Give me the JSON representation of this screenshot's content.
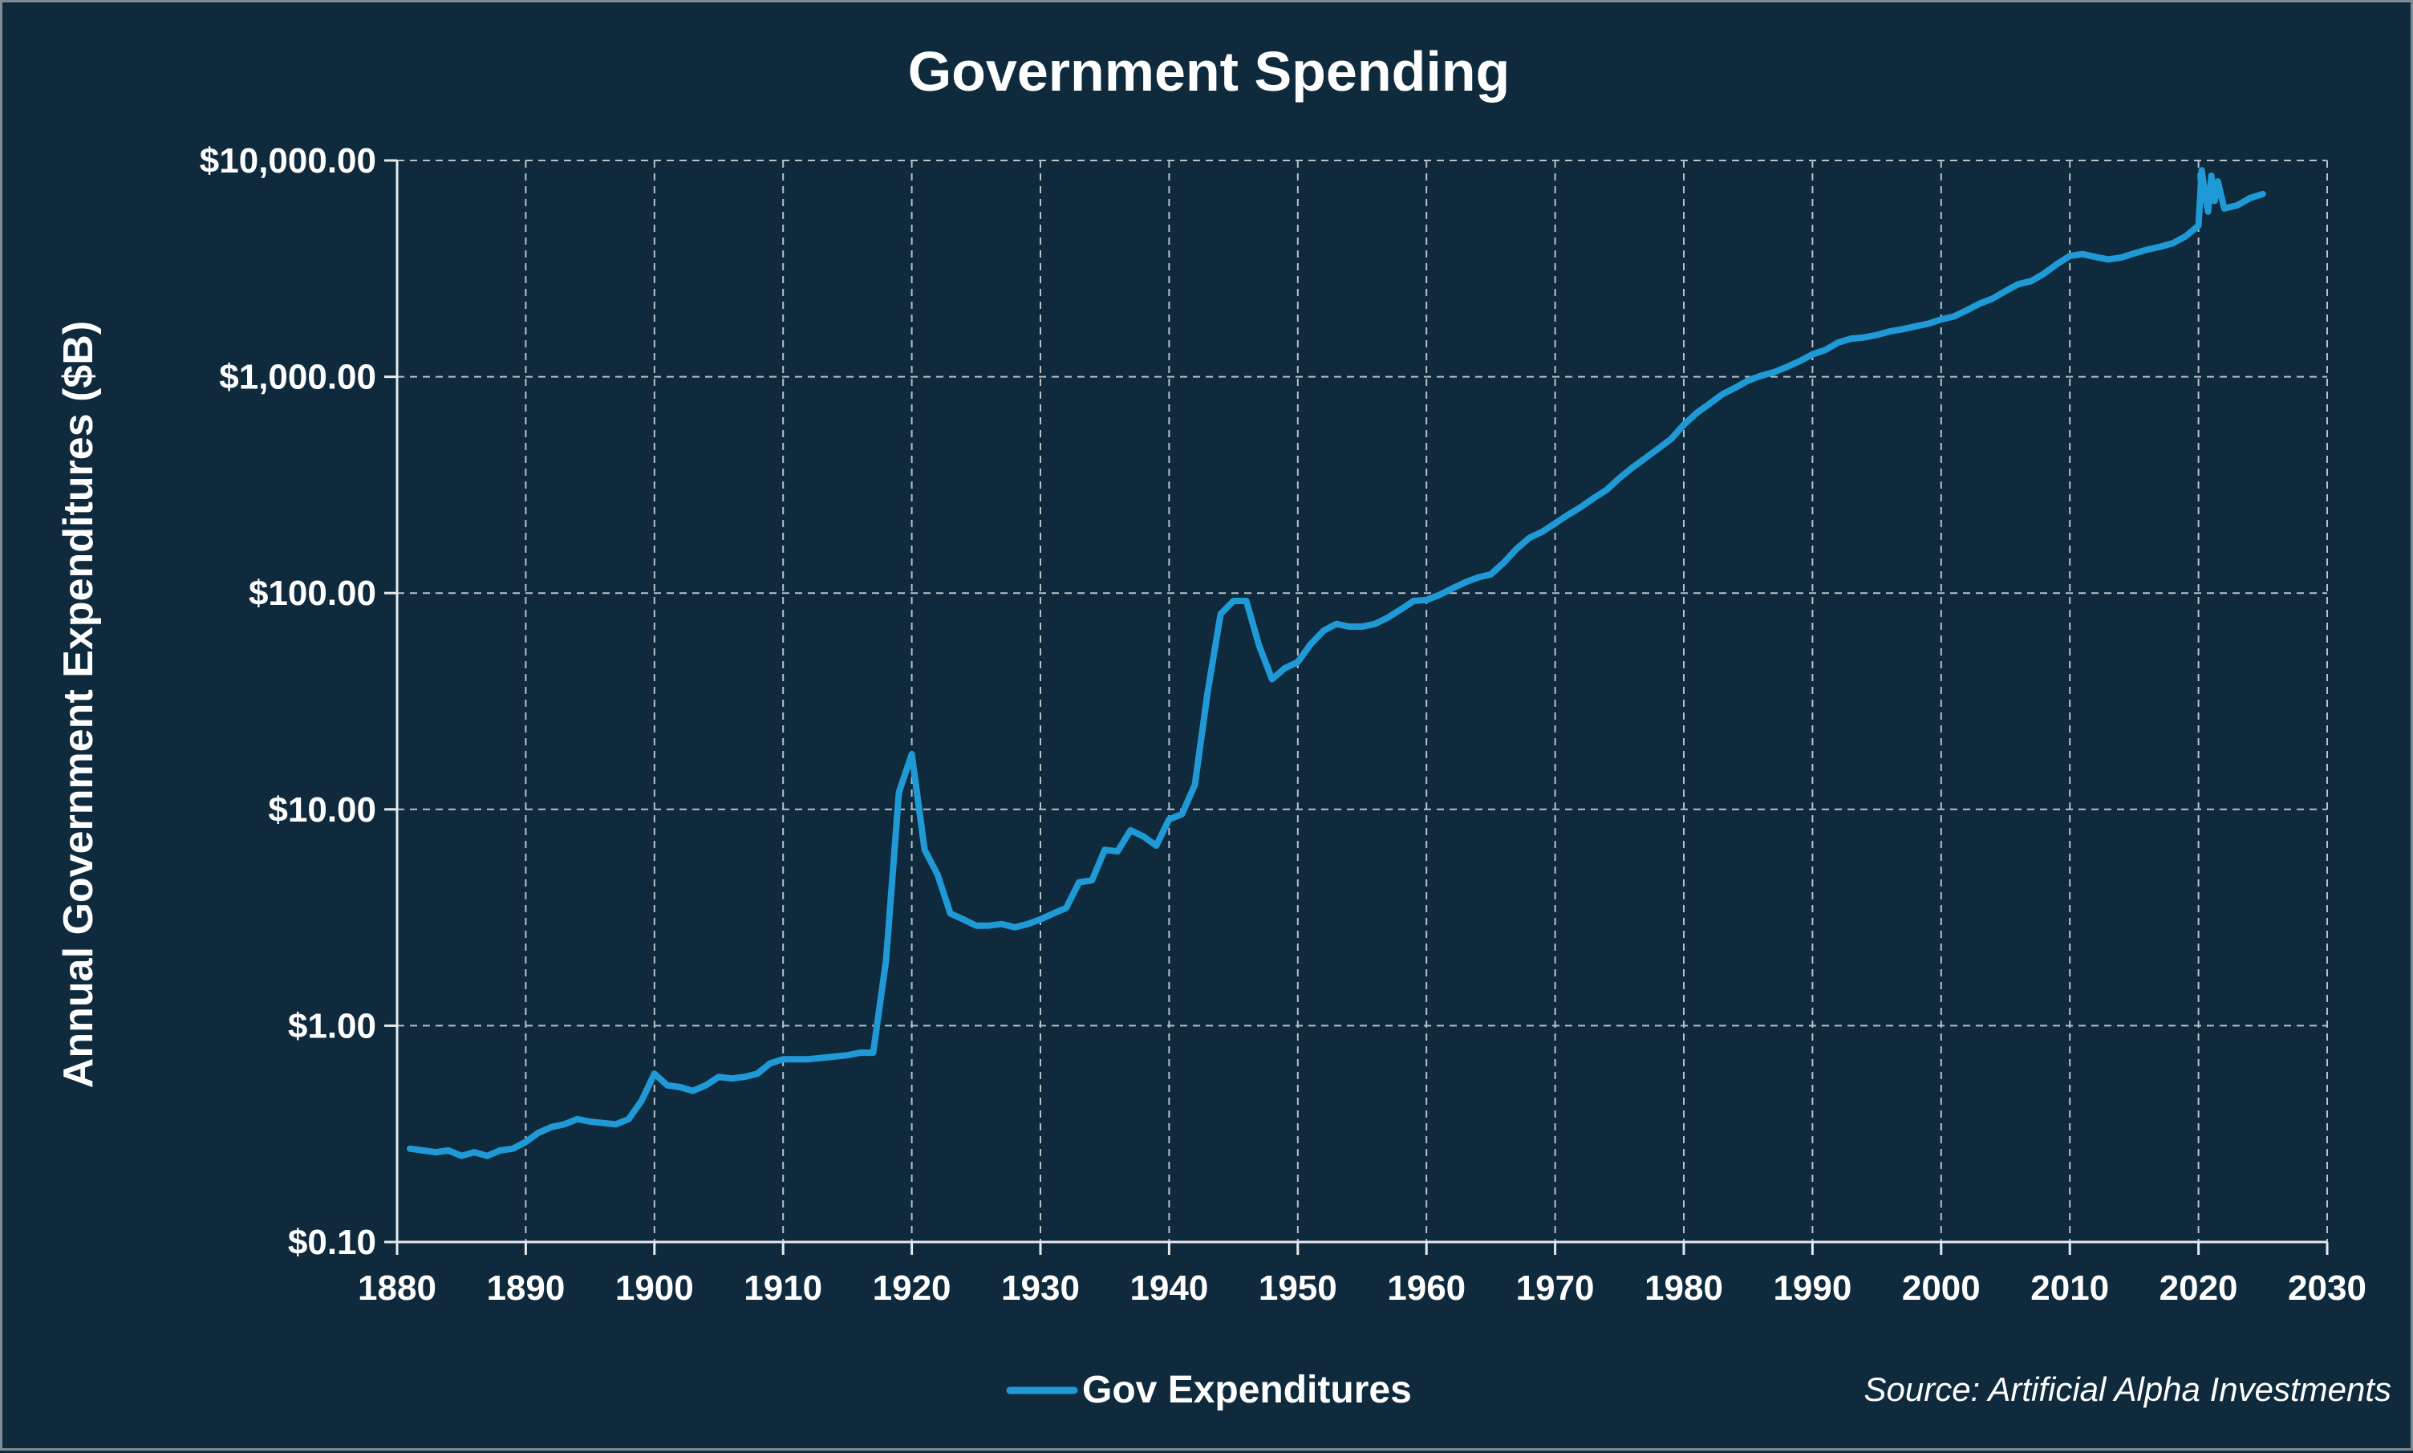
{
  "colors": {
    "background": "#0f2a3d",
    "series": "#1f9ad6",
    "text": "#ffffff",
    "grid": "#b8c2c9"
  },
  "chart_data": {
    "type": "line",
    "title": "Government Spending",
    "xlabel": "",
    "ylabel": "Annual Government Expenditures ($B)",
    "y_scale": "log",
    "xlim": [
      1880,
      2030
    ],
    "ylim": [
      0.1,
      10000
    ],
    "x_ticks": [
      "1880",
      "1890",
      "1900",
      "1910",
      "1920",
      "1930",
      "1940",
      "1950",
      "1960",
      "1970",
      "1980",
      "1990",
      "2000",
      "2010",
      "2020",
      "2030"
    ],
    "y_ticks": [
      {
        "value": 0.1,
        "label": "$0.10"
      },
      {
        "value": 1,
        "label": "$1.00"
      },
      {
        "value": 10,
        "label": "$10.00"
      },
      {
        "value": 100,
        "label": "$100.00"
      },
      {
        "value": 1000,
        "label": "$1,000.00"
      },
      {
        "value": 10000,
        "label": "$10,000.00"
      }
    ],
    "grid": true,
    "legend_position": "bottom-center",
    "source": "Source: Artificial Alpha Investments",
    "series": [
      {
        "name": "Gov Expenditures",
        "color": "#1f9ad6",
        "points": [
          [
            1881,
            0.27
          ],
          [
            1882,
            0.265
          ],
          [
            1883,
            0.26
          ],
          [
            1884,
            0.265
          ],
          [
            1885,
            0.25
          ],
          [
            1886,
            0.26
          ],
          [
            1887,
            0.25
          ],
          [
            1888,
            0.265
          ],
          [
            1889,
            0.27
          ],
          [
            1890,
            0.29
          ],
          [
            1891,
            0.32
          ],
          [
            1892,
            0.34
          ],
          [
            1893,
            0.35
          ],
          [
            1894,
            0.37
          ],
          [
            1895,
            0.36
          ],
          [
            1896,
            0.355
          ],
          [
            1897,
            0.35
          ],
          [
            1898,
            0.37
          ],
          [
            1899,
            0.45
          ],
          [
            1900,
            0.6
          ],
          [
            1901,
            0.53
          ],
          [
            1902,
            0.52
          ],
          [
            1903,
            0.5
          ],
          [
            1904,
            0.53
          ],
          [
            1905,
            0.58
          ],
          [
            1906,
            0.57
          ],
          [
            1907,
            0.58
          ],
          [
            1908,
            0.6
          ],
          [
            1909,
            0.67
          ],
          [
            1910,
            0.7
          ],
          [
            1911,
            0.7
          ],
          [
            1912,
            0.7
          ],
          [
            1913,
            0.71
          ],
          [
            1914,
            0.72
          ],
          [
            1915,
            0.73
          ],
          [
            1916,
            0.75
          ],
          [
            1917,
            0.75
          ],
          [
            1918,
            2.0
          ],
          [
            1919,
            12.0
          ],
          [
            1920,
            18.0
          ],
          [
            1921,
            6.5
          ],
          [
            1922,
            5.0
          ],
          [
            1923,
            3.3
          ],
          [
            1924,
            3.1
          ],
          [
            1925,
            2.9
          ],
          [
            1926,
            2.9
          ],
          [
            1927,
            2.95
          ],
          [
            1928,
            2.85
          ],
          [
            1929,
            2.95
          ],
          [
            1930,
            3.1
          ],
          [
            1931,
            3.3
          ],
          [
            1932,
            3.5
          ],
          [
            1933,
            4.6
          ],
          [
            1934,
            4.7
          ],
          [
            1935,
            6.5
          ],
          [
            1936,
            6.4
          ],
          [
            1937,
            8.0
          ],
          [
            1938,
            7.5
          ],
          [
            1939,
            6.8
          ],
          [
            1940,
            9.0
          ],
          [
            1941,
            9.5
          ],
          [
            1942,
            13.0
          ],
          [
            1943,
            35.0
          ],
          [
            1944,
            80.0
          ],
          [
            1945,
            92.0
          ],
          [
            1946,
            92.0
          ],
          [
            1947,
            57.0
          ],
          [
            1948,
            40.0
          ],
          [
            1949,
            45.0
          ],
          [
            1950,
            48.0
          ],
          [
            1951,
            58.0
          ],
          [
            1952,
            67.0
          ],
          [
            1953,
            72.0
          ],
          [
            1954,
            70.0
          ],
          [
            1955,
            70.0
          ],
          [
            1956,
            72.0
          ],
          [
            1957,
            77.0
          ],
          [
            1958,
            84.0
          ],
          [
            1959,
            92.0
          ],
          [
            1960,
            93.0
          ],
          [
            1961,
            98.0
          ],
          [
            1962,
            105.0
          ],
          [
            1963,
            112.0
          ],
          [
            1964,
            118.0
          ],
          [
            1965,
            122.0
          ],
          [
            1966,
            138.0
          ],
          [
            1967,
            160.0
          ],
          [
            1968,
            180.0
          ],
          [
            1969,
            192.0
          ],
          [
            1970,
            210.0
          ],
          [
            1971,
            230.0
          ],
          [
            1972,
            250.0
          ],
          [
            1973,
            275.0
          ],
          [
            1974,
            300.0
          ],
          [
            1975,
            340.0
          ],
          [
            1976,
            380.0
          ],
          [
            1977,
            420.0
          ],
          [
            1978,
            465.0
          ],
          [
            1979,
            515.0
          ],
          [
            1980,
            600.0
          ],
          [
            1981,
            680.0
          ],
          [
            1982,
            750.0
          ],
          [
            1983,
            830.0
          ],
          [
            1984,
            890.0
          ],
          [
            1985,
            960.0
          ],
          [
            1986,
            1010.0
          ],
          [
            1987,
            1050.0
          ],
          [
            1988,
            1110.0
          ],
          [
            1989,
            1180.0
          ],
          [
            1990,
            1270.0
          ],
          [
            1991,
            1330.0
          ],
          [
            1992,
            1440.0
          ],
          [
            1993,
            1500.0
          ],
          [
            1994,
            1520.0
          ],
          [
            1995,
            1560.0
          ],
          [
            1996,
            1620.0
          ],
          [
            1997,
            1660.0
          ],
          [
            1998,
            1710.0
          ],
          [
            1999,
            1760.0
          ],
          [
            2000,
            1840.0
          ],
          [
            2001,
            1900.0
          ],
          [
            2002,
            2030.0
          ],
          [
            2003,
            2180.0
          ],
          [
            2004,
            2300.0
          ],
          [
            2005,
            2490.0
          ],
          [
            2006,
            2680.0
          ],
          [
            2007,
            2770.0
          ],
          [
            2008,
            3000.0
          ],
          [
            2009,
            3320.0
          ],
          [
            2010,
            3620.0
          ],
          [
            2011,
            3690.0
          ],
          [
            2012,
            3580.0
          ],
          [
            2013,
            3490.0
          ],
          [
            2014,
            3560.0
          ],
          [
            2015,
            3720.0
          ],
          [
            2016,
            3870.0
          ],
          [
            2017,
            3990.0
          ],
          [
            2018,
            4140.0
          ],
          [
            2019,
            4460.0
          ],
          [
            2020,
            5000.0
          ],
          [
            2020.25,
            9000.0
          ],
          [
            2020.5,
            7000.0
          ],
          [
            2020.75,
            5800.0
          ],
          [
            2021,
            8500.0
          ],
          [
            2021.25,
            6500.0
          ],
          [
            2021.5,
            8000.0
          ],
          [
            2022,
            6000.0
          ],
          [
            2023,
            6200.0
          ],
          [
            2024,
            6700.0
          ],
          [
            2025,
            7000.0
          ]
        ]
      }
    ]
  }
}
